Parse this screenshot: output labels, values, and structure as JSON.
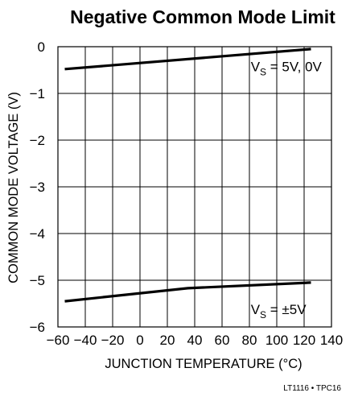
{
  "chart_data": {
    "type": "line",
    "title": "Negative Common Mode Limit",
    "xlabel": "JUNCTION TEMPERATURE (°C)",
    "ylabel": "COMMON MODE VOLTAGE (V)",
    "xlim": [
      -60,
      140
    ],
    "ylim": [
      -6,
      0
    ],
    "x_ticks": [
      "−60",
      "−40",
      "−20",
      "0",
      "20",
      "40",
      "60",
      "80",
      "100",
      "120",
      "140"
    ],
    "y_ticks": [
      "0",
      "−1",
      "−2",
      "−3",
      "−4",
      "−5",
      "−6"
    ],
    "grid": true,
    "series": [
      {
        "name": "VS = 5V, 0V",
        "x": [
          -55,
          125
        ],
        "y": [
          -0.48,
          -0.05
        ]
      },
      {
        "name": "VS = ±5V",
        "x": [
          -55,
          35,
          125
        ],
        "y": [
          -5.45,
          -5.17,
          -5.05
        ]
      }
    ],
    "annotations": [
      {
        "main": "V",
        "sub": "S",
        "rest": " = 5V, 0V"
      },
      {
        "main": "V",
        "sub": "S",
        "rest": " = ±5V"
      }
    ],
    "footnote": "LT1116 • TPC16"
  }
}
